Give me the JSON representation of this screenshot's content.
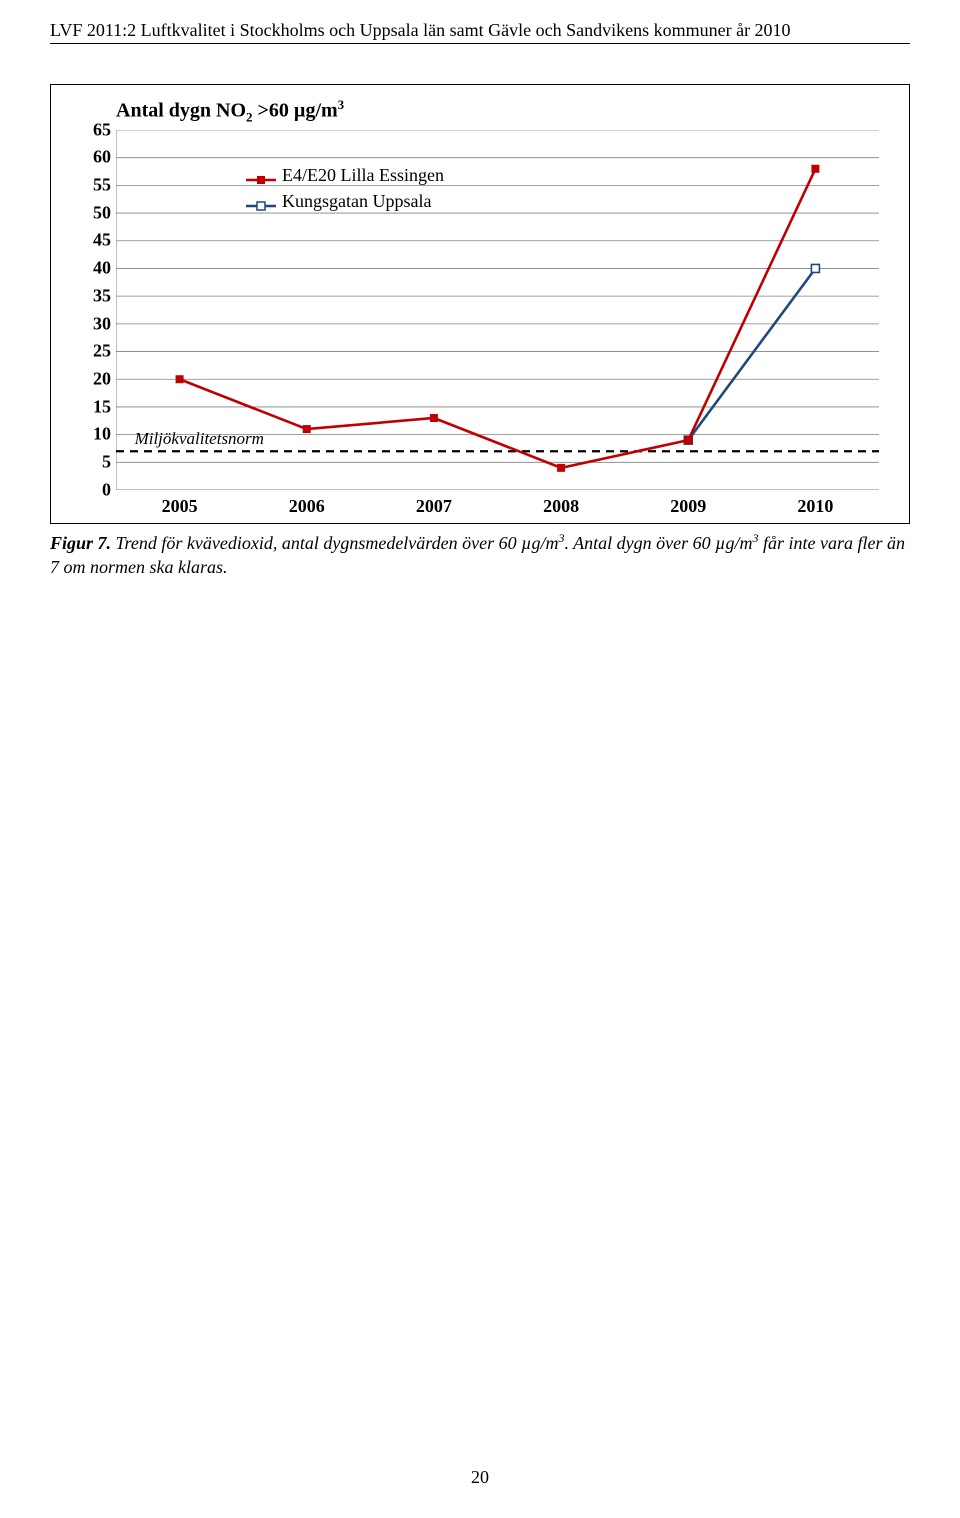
{
  "header": {
    "text": "LVF 2011:2 Luftkvalitet i Stockholms och Uppsala län samt Gävle och Sandvikens kommuner år 2010"
  },
  "chart": {
    "title_prefix": "Antal dygn NO",
    "title_sub": "2",
    "title_mid": " >60 µg/m",
    "title_sup": "3",
    "y": {
      "min": 0,
      "max": 65,
      "step": 5
    },
    "x_categories": [
      "2005",
      "2006",
      "2007",
      "2008",
      "2009",
      "2010"
    ],
    "series": [
      {
        "name": "E4/E20 Lilla Essingen",
        "color": "#c00000",
        "marker": "filled-square",
        "values": [
          20,
          11,
          13,
          4,
          9,
          58
        ]
      },
      {
        "name": "Kungsgatan Uppsala",
        "color": "#1f497d",
        "marker": "open-square",
        "values": [
          null,
          null,
          null,
          null,
          9,
          40
        ]
      }
    ],
    "norm": {
      "label": "Miljökvalitetsnorm",
      "value": 7,
      "color": "#000000"
    },
    "grid_color": "#808080",
    "axis_color": "#808080",
    "marker_size": 8,
    "line_width": 2.6
  },
  "caption": {
    "label": "Figur 7.",
    "body": " Trend för kvävedioxid, antal dygnsmedelvärden över 60 µg/m3. Antal dygn över 60 µg/m3 får inte vara fler än 7 om normen ska klaras."
  },
  "page_number": "20"
}
